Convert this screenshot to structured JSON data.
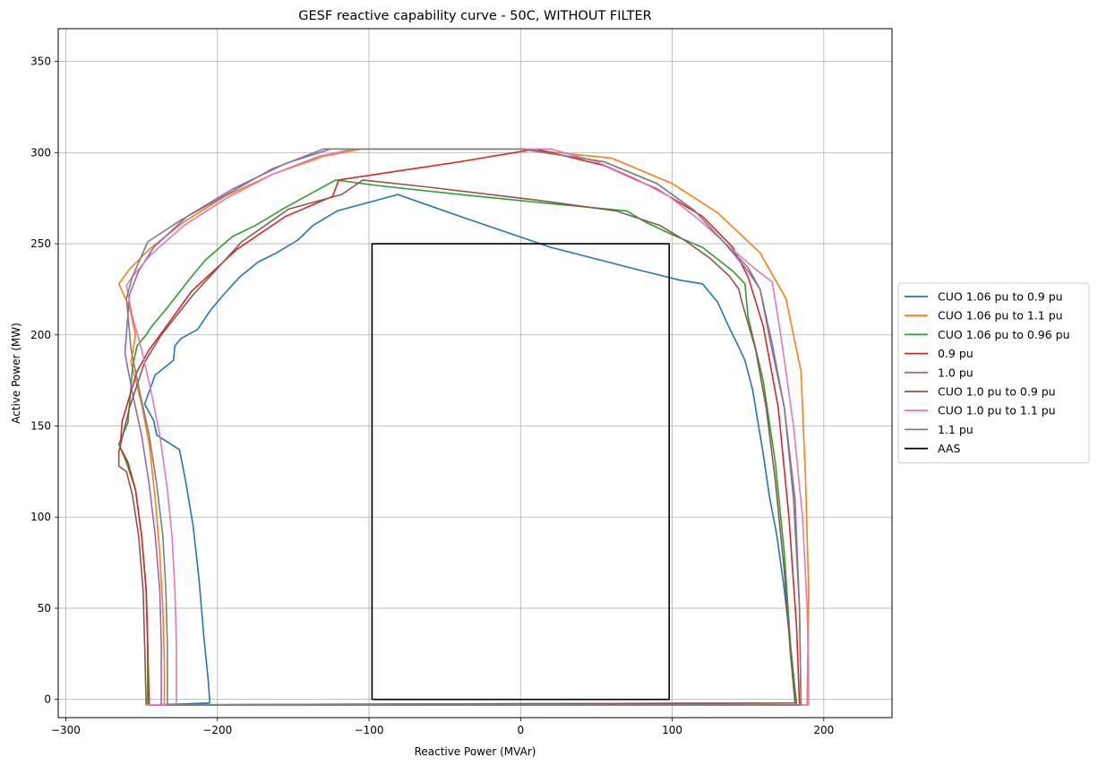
{
  "chart_data": {
    "type": "line",
    "title": "GESF reactive capability curve - 50C, WITHOUT FILTER",
    "xlabel": "Reactive Power (MVAr)",
    "ylabel": "Active Power (MW)",
    "xlim": [
      -305,
      245
    ],
    "ylim": [
      -10,
      368
    ],
    "xticks": [
      -300,
      -200,
      -100,
      0,
      100,
      200
    ],
    "yticks": [
      0,
      50,
      100,
      150,
      200,
      250,
      300,
      350
    ],
    "grid": true,
    "legend_position": "right-outside",
    "series": [
      {
        "name": "CUO 1.06 pu to 0.9 pu",
        "color": "#1f77b4",
        "x": [
          -205,
          -206,
          -209,
          -212,
          -216,
          -221,
          -225,
          -240,
          -242,
          -248,
          -241,
          -229,
          -228,
          -224,
          -213,
          -205,
          -196,
          -185,
          -173,
          -161,
          -147,
          -137,
          -121,
          -81,
          -40,
          20,
          81,
          105,
          120,
          130,
          137,
          143,
          148,
          153,
          156,
          160,
          164,
          169,
          174,
          178,
          181,
          182,
          181,
          -240,
          -205
        ],
        "y": [
          -2,
          10,
          35,
          65,
          95,
          120,
          137,
          145,
          153,
          162,
          178,
          186,
          194,
          198,
          203,
          213,
          222,
          232,
          240,
          245,
          252,
          260,
          268,
          277,
          265,
          248,
          235,
          230,
          228,
          218,
          205,
          195,
          186,
          170,
          155,
          135,
          112,
          90,
          60,
          30,
          5,
          -2,
          -2,
          -3,
          -2
        ]
      },
      {
        "name": "CUO 1.06 pu to 1.1 pu",
        "color": "#ff7f0e",
        "x": [
          -235,
          -235,
          -236,
          -238,
          -241,
          -245,
          -250,
          -257,
          -254,
          -258,
          -265,
          -258,
          -245,
          -222,
          -195,
          -164,
          -130,
          -105,
          -60,
          0,
          60,
          100,
          130,
          158,
          175,
          185,
          188,
          190,
          189,
          -245,
          -235
        ],
        "y": [
          -3,
          20,
          50,
          80,
          110,
          140,
          162,
          185,
          200,
          215,
          228,
          236,
          247,
          262,
          276,
          288,
          298,
          302,
          302,
          302,
          297,
          283,
          267,
          245,
          220,
          180,
          120,
          60,
          -3,
          -3,
          -3
        ]
      },
      {
        "name": "CUO 1.06 pu to 0.96 pu",
        "color": "#2ca02c",
        "x": [
          -246,
          -246,
          -247,
          -250,
          -254,
          -260,
          -265,
          -259,
          -256,
          -253,
          -247,
          -243,
          -233,
          -218,
          -208,
          -190,
          -175,
          -155,
          -122,
          -95,
          -40,
          20,
          70,
          82,
          100,
          120,
          140,
          148,
          150,
          160,
          168,
          174,
          178,
          182,
          -246
        ],
        "y": [
          -3,
          30,
          60,
          90,
          115,
          130,
          140,
          152,
          182,
          194,
          200,
          205,
          215,
          231,
          241,
          254,
          260,
          270,
          285,
          282,
          277,
          272,
          268,
          262,
          255,
          248,
          235,
          228,
          210,
          175,
          130,
          80,
          30,
          -3,
          -3
        ]
      },
      {
        "name": "0.9 pu",
        "color": "#d62728",
        "x": [
          -245,
          -246,
          -247,
          -250,
          -254,
          -259,
          -264,
          -263,
          -253,
          -245,
          -236,
          -217,
          -187,
          -155,
          -124,
          -120,
          -40,
          10,
          55,
          90,
          120,
          140,
          150,
          160,
          170,
          177,
          182,
          184,
          -245
        ],
        "y": [
          -3,
          30,
          60,
          90,
          115,
          130,
          138,
          152,
          180,
          192,
          202,
          224,
          247,
          265,
          276,
          285,
          295,
          302,
          293,
          280,
          265,
          248,
          232,
          205,
          160,
          100,
          40,
          -3,
          -3
        ]
      },
      {
        "name": "1.0 pu",
        "color": "#9467bd",
        "x": [
          -237,
          -237,
          -238,
          -241,
          -245,
          -250,
          -256,
          -261,
          -258,
          -252,
          -242,
          -220,
          -190,
          -155,
          -125,
          -103,
          -50,
          0,
          55,
          90,
          115,
          135,
          150,
          158,
          165,
          174,
          181,
          184,
          185,
          -237
        ],
        "y": [
          -3,
          30,
          60,
          90,
          118,
          145,
          168,
          190,
          222,
          235,
          248,
          265,
          280,
          294,
          302,
          302,
          302,
          302,
          295,
          283,
          268,
          250,
          235,
          225,
          195,
          160,
          110,
          50,
          -3,
          -3
        ]
      },
      {
        "name": "CUO 1.0 pu to 0.9 pu",
        "color": "#8c564b",
        "x": [
          -247,
          -248,
          -249,
          -252,
          -256,
          -260,
          -265,
          -265,
          -258,
          -248,
          -237,
          -216,
          -184,
          -153,
          -118,
          -104,
          -60,
          10,
          63,
          92,
          108,
          125,
          138,
          144,
          146,
          155,
          162,
          168,
          174,
          178,
          181,
          182,
          -247
        ],
        "y": [
          -3,
          30,
          60,
          90,
          112,
          125,
          128,
          136,
          160,
          185,
          200,
          222,
          251,
          269,
          277,
          285,
          281,
          274,
          268,
          260,
          252,
          242,
          232,
          225,
          218,
          192,
          160,
          120,
          70,
          25,
          -2,
          -2,
          -3
        ]
      },
      {
        "name": "CUO 1.0 pu to 1.1 pu",
        "color": "#e377c2",
        "x": [
          -227,
          -227,
          -228,
          -230,
          -233,
          -238,
          -244,
          -250,
          -256,
          -260,
          -256,
          -244,
          -222,
          -194,
          -164,
          -133,
          -110,
          -50,
          20,
          50,
          75,
          98,
          118,
          138,
          155,
          166,
          172,
          180,
          186,
          189,
          190,
          190,
          -247
        ],
        "y": [
          -3,
          30,
          60,
          90,
          115,
          145,
          170,
          192,
          210,
          227,
          232,
          244,
          260,
          275,
          288,
          298,
          302,
          302,
          302,
          295,
          286,
          276,
          263,
          248,
          236,
          229,
          198,
          150,
          100,
          50,
          15,
          -3,
          -3
        ]
      },
      {
        "name": "1.1 pu",
        "color": "#7f7f7f",
        "x": [
          -233,
          -233,
          -234,
          -236,
          -240,
          -245,
          -251,
          -257,
          -260,
          -256,
          -246,
          -224,
          -196,
          -164,
          -130,
          -110,
          -60,
          0,
          55,
          90,
          115,
          135,
          150,
          158,
          166,
          174,
          180,
          184,
          185,
          -233
        ],
        "y": [
          -3,
          30,
          60,
          90,
          118,
          145,
          168,
          192,
          220,
          232,
          251,
          263,
          276,
          291,
          302,
          302,
          302,
          302,
          295,
          283,
          268,
          250,
          237,
          225,
          195,
          160,
          110,
          50,
          -3,
          -3
        ]
      },
      {
        "name": "AAS",
        "color": "#000000",
        "x": [
          -98,
          -98,
          98,
          98,
          -98
        ],
        "y": [
          0,
          250,
          250,
          0,
          0
        ]
      }
    ]
  }
}
